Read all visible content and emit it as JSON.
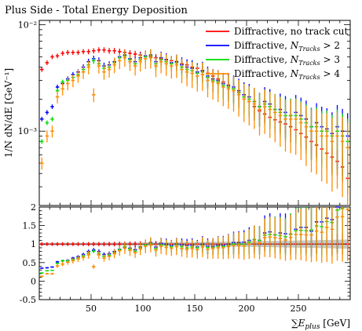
{
  "chart_data": {
    "type": "scatter",
    "title": "Plus Side - Total Energy Deposition",
    "xlabel": "∑E_plus [GeV]",
    "ylabel": "1/N dN/dE [GeV⁻¹]",
    "ratio_ylabel": "",
    "xlim": [
      0,
      300
    ],
    "ylim": [
      0.0002,
      0.011
    ],
    "yscale": "log",
    "ratio_ylim": [
      -0.5,
      2
    ],
    "x_ticks": [
      50,
      100,
      150,
      200,
      250
    ],
    "y_ticks": [
      {
        "value": 0.01,
        "label": "10⁻²"
      },
      {
        "value": 0.001,
        "label": "10⁻³"
      }
    ],
    "ratio_ticks": [
      -0.5,
      0,
      0.5,
      1,
      1.5,
      2
    ],
    "legend_position": "top-right",
    "series": [
      {
        "name": "Diffractive, no track cut",
        "color": "#ff0000",
        "x": [
          2.5,
          7.5,
          12.5,
          17.5,
          22.5,
          27.5,
          32.5,
          37.5,
          42.5,
          47.5,
          52.5,
          57.5,
          62.5,
          67.5,
          72.5,
          77.5,
          82.5,
          87.5,
          92.5,
          97.5,
          102.5,
          107.5,
          112.5,
          117.5,
          122.5,
          127.5,
          132.5,
          137.5,
          142.5,
          147.5,
          152.5,
          157.5,
          162.5,
          167.5,
          172.5,
          177.5,
          182.5,
          187.5,
          192.5,
          197.5,
          202.5,
          207.5,
          212.5,
          217.5,
          222.5,
          227.5,
          232.5,
          237.5,
          242.5,
          247.5,
          252.5,
          257.5,
          262.5,
          267.5,
          272.5,
          277.5,
          282.5,
          287.5,
          292.5,
          297.5
        ],
        "y": [
          0.0038,
          0.0044,
          0.005,
          0.0051,
          0.0054,
          0.0055,
          0.0055,
          0.0055,
          0.0056,
          0.0056,
          0.0057,
          0.0058,
          0.0058,
          0.0057,
          0.0057,
          0.0056,
          0.0055,
          0.0054,
          0.0053,
          0.0052,
          0.0051,
          0.005,
          0.0049,
          0.0048,
          0.0047,
          0.0046,
          0.0045,
          0.0043,
          0.0042,
          0.004,
          0.0039,
          0.0037,
          0.0035,
          0.0033,
          0.0031,
          0.0029,
          0.0027,
          0.0025,
          0.0023,
          0.0021,
          0.0019,
          0.0017,
          0.00155,
          0.00145,
          0.00135,
          0.00128,
          0.00122,
          0.00117,
          0.0011,
          0.00103,
          0.00095,
          0.00088,
          0.0008,
          0.00074,
          0.00068,
          0.00062,
          0.00057,
          0.00052,
          0.00046,
          0.00036
        ],
        "ratio": [
          1.0,
          1.0,
          1.0,
          1.0,
          1.0,
          1.0,
          1.0,
          1.0,
          1.0,
          1.0,
          1.0,
          1.0,
          1.0,
          1.0,
          1.0,
          1.0,
          1.0,
          1.0,
          1.0,
          1.0,
          1.0,
          1.0,
          1.0,
          1.0,
          1.0,
          1.0,
          1.0,
          1.0,
          1.0,
          1.0,
          1.0,
          1.0,
          1.0,
          1.0,
          1.0,
          1.0,
          1.0,
          1.0,
          1.0,
          1.0,
          1.0,
          1.0,
          1.0,
          1.0,
          1.0,
          1.0,
          1.0,
          1.0,
          1.0,
          1.0,
          1.0,
          1.0,
          1.0,
          1.0,
          1.0,
          1.0,
          1.0,
          1.0,
          1.0,
          1.0
        ]
      },
      {
        "name": "Diffractive, N_Tracks > 2",
        "color": "#0000ff",
        "x": [
          2.5,
          7.5,
          12.5,
          17.5,
          22.5,
          27.5,
          32.5,
          37.5,
          42.5,
          47.5,
          52.5,
          57.5,
          62.5,
          67.5,
          72.5,
          77.5,
          82.5,
          87.5,
          92.5,
          97.5,
          102.5,
          107.5,
          112.5,
          117.5,
          122.5,
          127.5,
          132.5,
          137.5,
          142.5,
          147.5,
          152.5,
          157.5,
          162.5,
          167.5,
          172.5,
          177.5,
          182.5,
          187.5,
          192.5,
          197.5,
          202.5,
          207.5,
          212.5,
          217.5,
          222.5,
          227.5,
          232.5,
          237.5,
          242.5,
          247.5,
          252.5,
          257.5,
          262.5,
          267.5,
          272.5,
          277.5,
          282.5,
          287.5,
          292.5,
          297.5
        ],
        "y": [
          0.0013,
          0.0015,
          0.0017,
          0.0026,
          0.0028,
          0.0031,
          0.0034,
          0.0036,
          0.004,
          0.0045,
          0.0048,
          0.0046,
          0.0041,
          0.0042,
          0.0045,
          0.005,
          0.0052,
          0.0048,
          0.0045,
          0.0049,
          0.0051,
          0.0052,
          0.0045,
          0.0049,
          0.0047,
          0.0044,
          0.0045,
          0.0042,
          0.004,
          0.0039,
          0.0036,
          0.0037,
          0.0033,
          0.0031,
          0.003,
          0.0028,
          0.0027,
          0.0026,
          0.0024,
          0.0022,
          0.0021,
          0.0019,
          0.0017,
          0.0019,
          0.0018,
          0.0016,
          0.0016,
          0.0015,
          0.0014,
          0.0015,
          0.0014,
          0.0013,
          0.0011,
          0.0012,
          0.0011,
          0.00105,
          0.00095,
          0.0011,
          0.001,
          0.0009
        ],
        "ratio": [
          0.35,
          0.36,
          0.38,
          0.52,
          0.55,
          0.56,
          0.62,
          0.66,
          0.72,
          0.8,
          0.84,
          0.8,
          0.72,
          0.74,
          0.8,
          0.86,
          0.92,
          0.89,
          0.85,
          0.92,
          0.98,
          1.04,
          0.92,
          1.02,
          1.0,
          0.96,
          1.0,
          0.98,
          0.96,
          0.97,
          0.92,
          1.0,
          0.94,
          0.94,
          0.97,
          0.97,
          1.0,
          1.04,
          1.04,
          1.05,
          1.1,
          1.12,
          1.1,
          1.3,
          1.33,
          1.25,
          1.3,
          1.28,
          1.27,
          1.4,
          1.45,
          1.45,
          1.35,
          1.6,
          1.6,
          1.7,
          1.66,
          2.0,
          2.1,
          2.3
        ]
      },
      {
        "name": "Diffractive, N_Tracks > 3",
        "color": "#00dd00",
        "x": [
          2.5,
          7.5,
          12.5,
          17.5,
          22.5,
          27.5,
          32.5,
          37.5,
          42.5,
          47.5,
          52.5,
          57.5,
          62.5,
          67.5,
          72.5,
          77.5,
          82.5,
          87.5,
          92.5,
          97.5,
          102.5,
          107.5,
          112.5,
          117.5,
          122.5,
          127.5,
          132.5,
          137.5,
          142.5,
          147.5,
          152.5,
          157.5,
          162.5,
          167.5,
          172.5,
          177.5,
          182.5,
          187.5,
          192.5,
          197.5,
          202.5,
          207.5,
          212.5,
          217.5,
          222.5,
          227.5,
          232.5,
          237.5,
          242.5,
          247.5,
          252.5,
          257.5,
          262.5,
          267.5,
          272.5,
          277.5,
          282.5,
          287.5,
          292.5,
          297.5
        ],
        "y": [
          0.0008,
          0.0012,
          0.0013,
          0.0024,
          0.0029,
          0.003,
          0.0032,
          0.0034,
          0.0038,
          0.0042,
          0.0046,
          0.0043,
          0.0039,
          0.004,
          0.0044,
          0.0049,
          0.0051,
          0.0047,
          0.0043,
          0.0047,
          0.005,
          0.0051,
          0.0043,
          0.0047,
          0.0045,
          0.0043,
          0.0044,
          0.004,
          0.0038,
          0.0037,
          0.0035,
          0.0036,
          0.0032,
          0.003,
          0.0029,
          0.0027,
          0.0026,
          0.0025,
          0.0023,
          0.0021,
          0.002,
          0.0019,
          0.0017,
          0.0018,
          0.0017,
          0.0016,
          0.0015,
          0.0014,
          0.0014,
          0.0014,
          0.0013,
          0.0012,
          0.0011,
          0.0011,
          0.001,
          0.001,
          0.0009,
          0.001,
          0.0009,
          0.0008
        ],
        "ratio": [
          0.22,
          0.28,
          0.29,
          0.48,
          0.55,
          0.55,
          0.58,
          0.62,
          0.68,
          0.75,
          0.81,
          0.74,
          0.67,
          0.7,
          0.77,
          0.85,
          0.93,
          0.87,
          0.81,
          0.9,
          0.98,
          1.02,
          0.88,
          0.98,
          0.96,
          0.93,
          0.98,
          0.93,
          0.9,
          0.92,
          0.9,
          0.97,
          0.91,
          0.91,
          0.94,
          0.93,
          0.96,
          1.0,
          1.0,
          1.0,
          1.05,
          1.12,
          1.1,
          1.24,
          1.26,
          1.25,
          1.23,
          1.2,
          1.27,
          1.36,
          1.37,
          1.36,
          1.38,
          1.49,
          1.47,
          1.61,
          1.58,
          1.92,
          1.96,
          2.2
        ]
      },
      {
        "name": "Diffractive, N_Tracks > 4",
        "color": "#ff8c00",
        "x": [
          2.5,
          7.5,
          12.5,
          17.5,
          22.5,
          27.5,
          32.5,
          37.5,
          42.5,
          47.5,
          52.5,
          57.5,
          62.5,
          67.5,
          72.5,
          77.5,
          82.5,
          87.5,
          92.5,
          97.5,
          102.5,
          107.5,
          112.5,
          117.5,
          122.5,
          127.5,
          132.5,
          137.5,
          142.5,
          147.5,
          152.5,
          157.5,
          162.5,
          167.5,
          172.5,
          177.5,
          182.5,
          187.5,
          192.5,
          197.5,
          202.5,
          207.5,
          212.5,
          217.5,
          222.5,
          227.5,
          232.5,
          237.5,
          242.5,
          247.5,
          252.5,
          257.5,
          262.5,
          267.5,
          272.5,
          277.5,
          282.5,
          287.5,
          292.5,
          297.5
        ],
        "y": [
          0.0005,
          0.0009,
          0.001,
          0.0021,
          0.0025,
          0.0028,
          0.003,
          0.0033,
          0.0036,
          0.004,
          0.0022,
          0.0041,
          0.0036,
          0.0038,
          0.0042,
          0.0046,
          0.0049,
          0.0045,
          0.0041,
          0.0045,
          0.0048,
          0.0049,
          0.0041,
          0.0045,
          0.0043,
          0.0041,
          0.0042,
          0.0038,
          0.0036,
          0.0035,
          0.0033,
          0.0034,
          0.003,
          0.0029,
          0.0028,
          0.0026,
          0.0025,
          0.0024,
          0.0022,
          0.002,
          0.0019,
          0.0018,
          0.0016,
          0.0017,
          0.0016,
          0.0015,
          0.0014,
          0.0013,
          0.0013,
          0.0013,
          0.0012,
          0.0011,
          0.001,
          0.001,
          0.0009,
          0.0009,
          0.0008,
          0.0009,
          0.0008,
          0.0007
        ],
        "ratio": [
          0.13,
          0.2,
          0.2,
          0.41,
          0.46,
          0.51,
          0.55,
          0.6,
          0.64,
          0.71,
          0.39,
          0.71,
          0.62,
          0.67,
          0.74,
          0.82,
          0.89,
          0.83,
          0.77,
          0.87,
          0.94,
          0.98,
          0.84,
          0.94,
          0.91,
          0.89,
          0.93,
          0.88,
          0.86,
          0.88,
          0.85,
          0.92,
          0.86,
          0.88,
          0.9,
          0.9,
          0.93,
          0.96,
          0.96,
          0.95,
          1.0,
          1.06,
          1.03,
          1.17,
          1.19,
          1.17,
          1.15,
          1.11,
          1.18,
          1.26,
          1.26,
          1.25,
          1.25,
          1.35,
          1.32,
          1.45,
          1.4,
          1.73,
          1.74,
          1.94
        ]
      }
    ]
  }
}
